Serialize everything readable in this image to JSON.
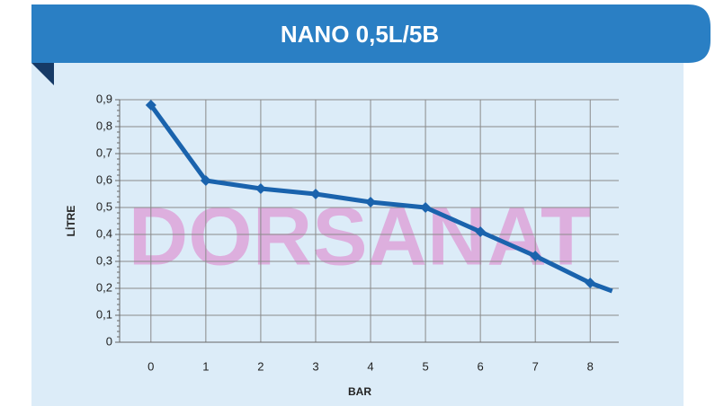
{
  "watermark": "DORSANAT",
  "chart_data": {
    "type": "line",
    "title": "NANO 0,5L/5B",
    "x_label": "BAR",
    "y_label": "LİTRE",
    "x": [
      0,
      1,
      2,
      3,
      4,
      5,
      6,
      7,
      8,
      8.4
    ],
    "series": [
      {
        "name": "NANO 0,5L/5B",
        "color": "#1a63ad",
        "values": [
          0.88,
          0.6,
          0.57,
          0.55,
          0.52,
          0.5,
          0.41,
          0.32,
          0.22,
          0.19
        ]
      }
    ],
    "xlim": [
      -0.57,
      8.52
    ],
    "xticks": [
      0,
      1,
      2,
      3,
      4,
      5,
      6,
      7,
      8
    ],
    "ylim": [
      0,
      0.9
    ],
    "yticks": [
      0,
      {
        "value": 0.1,
        "label": "0,1"
      },
      {
        "value": 0.2,
        "label": "0,2"
      },
      {
        "value": 0.3,
        "label": "0,3"
      },
      {
        "value": 0.4,
        "label": "0,4"
      },
      {
        "value": 0.5,
        "label": "0,5"
      },
      {
        "value": 0.6,
        "label": "0,6"
      },
      {
        "value": 0.7,
        "label": "0,7"
      },
      {
        "value": 0.8,
        "label": "0,8"
      },
      {
        "value": 0.9,
        "label": "0,9"
      }
    ],
    "grid": true
  }
}
